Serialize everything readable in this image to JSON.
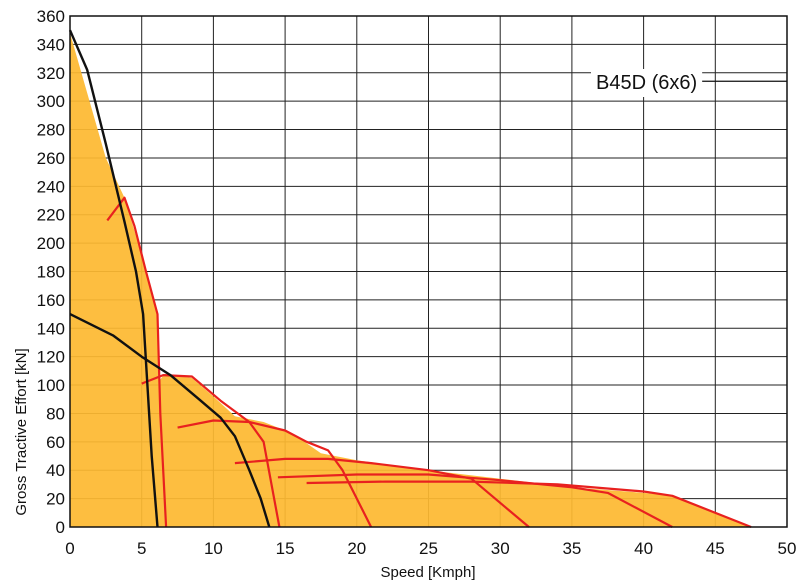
{
  "chart_data": {
    "type": "area",
    "title": "B45D (6x6)",
    "xlabel": "Speed [Kmph]",
    "ylabel": "Gross Tractive Effort [kN]",
    "xlim": [
      0,
      50
    ],
    "ylim": [
      0,
      360
    ],
    "x_ticks": [
      "0",
      "5",
      "10",
      "15",
      "20",
      "25",
      "30",
      "35",
      "40",
      "45",
      "50"
    ],
    "y_ticks": [
      "0",
      "20",
      "40",
      "60",
      "80",
      "100",
      "120",
      "140",
      "160",
      "180",
      "200",
      "220",
      "240",
      "260",
      "280",
      "300",
      "320",
      "340",
      "360"
    ],
    "grid": true,
    "colors": {
      "fill": "#FDB931",
      "gear_curves": "#E8211F",
      "retardation_curves": "#111111",
      "grid": "#222222"
    },
    "envelope": {
      "x": [
        0,
        2.5,
        3.8,
        5.2,
        6.1,
        6.3,
        6.7,
        6.0,
        6.6,
        8.5,
        10,
        11.5,
        13.5,
        15.5,
        17.5,
        20,
        25,
        30,
        35,
        40,
        42,
        47.5
      ],
      "y": [
        348,
        260,
        232,
        185,
        150,
        80,
        0,
        100,
        108,
        105,
        92,
        78,
        74,
        66,
        52,
        47,
        40,
        34,
        28,
        24,
        22,
        0
      ]
    },
    "series": [
      {
        "x": [
          2.6,
          3.8,
          4.5,
          5.3,
          6.1,
          6.3,
          6.7
        ],
        "y": [
          216,
          232,
          212,
          180,
          150,
          80,
          0
        ]
      },
      {
        "x": [
          5.0,
          6.5,
          8.5,
          10.5,
          12.5,
          13.5,
          14.6
        ],
        "y": [
          101,
          107,
          106,
          89,
          74,
          60,
          0
        ]
      },
      {
        "x": [
          7.5,
          10,
          12.5,
          15,
          16.5,
          18,
          19,
          21
        ],
        "y": [
          70,
          75,
          74,
          68,
          60,
          54,
          40,
          0
        ]
      },
      {
        "x": [
          11.5,
          15,
          18,
          21,
          25,
          28,
          32
        ],
        "y": [
          45,
          48,
          48,
          45,
          40,
          34,
          0
        ]
      },
      {
        "x": [
          14.5,
          20,
          25,
          30,
          35,
          37.5,
          42
        ],
        "y": [
          35,
          37,
          37,
          33,
          28,
          24,
          0
        ]
      },
      {
        "x": [
          16.5,
          22,
          28,
          34,
          40,
          42,
          47.5
        ],
        "y": [
          31,
          32,
          32,
          30,
          25,
          22,
          0
        ]
      }
    ],
    "retardation_series": [
      {
        "x": [
          0,
          1.2,
          2.5,
          3.8,
          4.6,
          5.1,
          5.4,
          5.7,
          6.1
        ],
        "y": [
          350,
          322,
          270,
          215,
          180,
          150,
          100,
          50,
          0
        ]
      },
      {
        "x": [
          0,
          3,
          5,
          7,
          9,
          10.5,
          11.5,
          12.5,
          13.3,
          13.9
        ],
        "y": [
          150,
          135,
          120,
          107,
          90,
          77,
          64,
          40,
          20,
          0
        ]
      }
    ]
  }
}
